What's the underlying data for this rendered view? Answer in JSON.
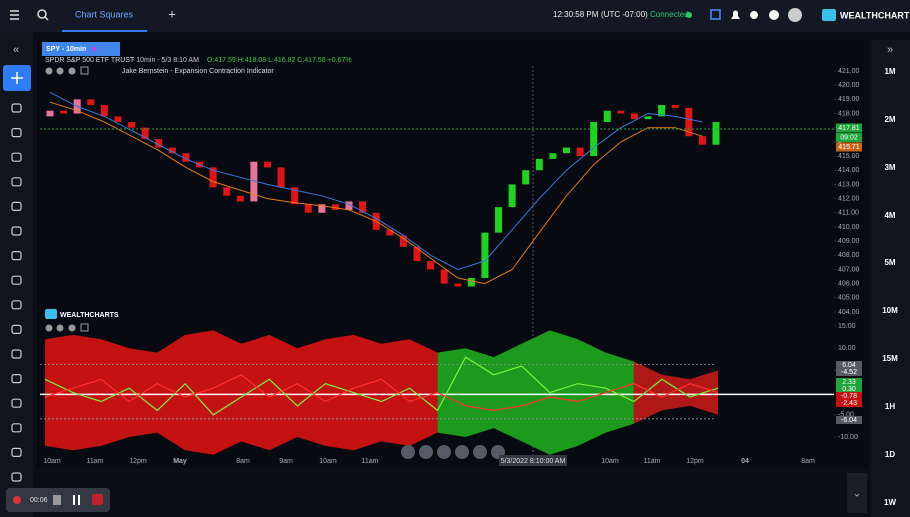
{
  "header": {
    "tab": "Chart Squares",
    "add_tab": "+",
    "time": "12:30:58 PM",
    "timezone": "(UTC -07:00)",
    "status": "Connected",
    "brand": "WEALTHCHARTS"
  },
  "chart_header": {
    "symbol_tab": "SPY - 10min",
    "name": "SPDR S&P 500 ETF TRUST",
    "interval": "- 10min - 5/3 8:10 AM",
    "ohlc": "O:417.59 H:418.08 L:416.82 C:417.58 +0.67%",
    "indicator": "Jake Bernstein - Expansion Contraction Indicator",
    "watermark": "WEALTHCHARTS"
  },
  "timeframes": [
    "1M",
    "2M",
    "3M",
    "4M",
    "5M",
    "10M",
    "15M",
    "1H",
    "1D",
    "1W"
  ],
  "crosshair_label": "5/3/2022 8:10:00 AM",
  "recorder_time": "00:06",
  "chart_data": [
    {
      "type": "candlestick",
      "x_labels": [
        "10am",
        "11am",
        "12pm",
        "May",
        "8am",
        "9am",
        "10am",
        "11am",
        "10am",
        "11am",
        "12pm",
        "04",
        "8am"
      ],
      "opens": [
        417.8,
        418.2,
        418.0,
        419.0,
        418.6,
        417.8,
        417.4,
        417.0,
        416.2,
        415.6,
        415.2,
        414.6,
        414.2,
        412.8,
        412.2,
        411.8,
        414.6,
        414.2,
        412.8,
        411.6,
        411.0,
        411.6,
        411.2,
        411.8,
        411.0,
        409.8,
        409.4,
        408.6,
        407.6,
        407.0,
        406.0,
        405.8,
        406.4,
        409.6,
        411.4,
        413.0,
        414.0,
        414.8,
        415.2,
        415.6,
        415.0,
        417.4,
        418.2,
        418.0,
        417.6,
        417.8,
        418.6,
        418.4,
        416.4,
        415.8
      ],
      "closes": [
        418.2,
        418.0,
        419.0,
        418.6,
        417.8,
        417.4,
        417.0,
        416.2,
        415.6,
        415.2,
        414.6,
        414.2,
        412.8,
        412.2,
        411.8,
        414.6,
        414.2,
        412.8,
        411.6,
        411.0,
        411.6,
        411.2,
        411.8,
        411.0,
        409.8,
        409.4,
        408.6,
        407.6,
        407.0,
        406.0,
        405.8,
        406.4,
        409.6,
        411.4,
        413.0,
        414.0,
        414.8,
        415.2,
        415.6,
        415.0,
        417.4,
        418.2,
        418.0,
        417.6,
        417.8,
        418.6,
        418.4,
        416.4,
        415.8,
        417.4
      ],
      "up_color": "#e8749a",
      "up_color_late": "#1ed41e",
      "down_color": "#e01414",
      "series": [
        {
          "color": "#3a78d8",
          "values": [
            419.5,
            418.5,
            417.8,
            416.8,
            415.8,
            414.8,
            414.0,
            413.5,
            413.0,
            412.6,
            412.2,
            411.6,
            410.6,
            409.4,
            408.0,
            407.0,
            407.6,
            409.8,
            412.0,
            414.0,
            415.6,
            417.0,
            418.0,
            417.8,
            417.4
          ]
        },
        {
          "color": "#e07a1a",
          "values": [
            418.8,
            418.2,
            417.4,
            416.4,
            415.4,
            414.2,
            413.2,
            412.6,
            412.0,
            411.7,
            411.5,
            411.2,
            410.4,
            409.2,
            407.8,
            406.4,
            406.0,
            407.0,
            409.6,
            412.2,
            414.4,
            416.0,
            417.0,
            417.0,
            416.4
          ]
        }
      ],
      "ylim": [
        403.2,
        421.7
      ],
      "yticks": [
        {
          "value": 421,
          "label": "421.00"
        },
        {
          "value": 420,
          "label": "420.00"
        },
        {
          "value": 419,
          "label": "419.00"
        },
        {
          "value": 418,
          "label": "418.00"
        },
        {
          "value": 417,
          "label": "417.00"
        },
        {
          "value": 416,
          "label": "416.00"
        },
        {
          "value": 415,
          "label": "415.00"
        },
        {
          "value": 414,
          "label": "414.00"
        },
        {
          "value": 413,
          "label": "413.00"
        },
        {
          "value": 412,
          "label": "412.00"
        },
        {
          "value": 411,
          "label": "411.00"
        },
        {
          "value": 410,
          "label": "410.00"
        },
        {
          "value": 409,
          "label": "409.00"
        },
        {
          "value": 408,
          "label": "408.00"
        },
        {
          "value": 407,
          "label": "407.00"
        },
        {
          "value": 406,
          "label": "406.00"
        },
        {
          "value": 405,
          "label": "405.00"
        },
        {
          "value": 404,
          "label": "404.00"
        }
      ],
      "price_badges": [
        {
          "text": "417.81",
          "color": "#1fa33a"
        },
        {
          "text": "09:02",
          "color": "#1fa33a"
        },
        {
          "text": "415.71",
          "color": "#c8641a"
        }
      ]
    },
    {
      "type": "band-oscillator",
      "bands": [
        {
          "color": "#c41212",
          "values": [
            12,
            13,
            12,
            10,
            9,
            13,
            14,
            11,
            13,
            10,
            12,
            13,
            11,
            12,
            9,
            null,
            null,
            null,
            null,
            null,
            null,
            null,
            null,
            null,
            null
          ]
        },
        {
          "color": "#1d9a1d",
          "values": [
            null,
            null,
            null,
            null,
            null,
            null,
            null,
            null,
            null,
            null,
            null,
            null,
            null,
            null,
            9,
            10,
            8,
            11,
            14,
            12,
            9,
            7,
            null,
            null,
            null
          ]
        },
        {
          "color": "#b01818",
          "values": [
            null,
            null,
            null,
            null,
            null,
            null,
            null,
            null,
            null,
            null,
            null,
            null,
            null,
            null,
            null,
            null,
            null,
            null,
            null,
            null,
            null,
            7,
            4,
            3,
            5
          ]
        }
      ],
      "series": [
        {
          "color": "#7cf03a",
          "values": [
            3,
            0,
            -2,
            1,
            -4,
            2,
            -5,
            -1,
            3,
            -3,
            2,
            0,
            -2,
            1,
            -4,
            8,
            4,
            6,
            0,
            2,
            1,
            -2,
            3,
            -1,
            1
          ]
        },
        {
          "color": "#ff3030",
          "values": [
            -1,
            1,
            3,
            -2,
            2,
            -1,
            1,
            4,
            -1,
            2,
            -2,
            1,
            3,
            -2,
            0,
            -3,
            -4,
            -3,
            -1,
            -2,
            0,
            2,
            -1,
            2,
            0
          ]
        }
      ],
      "levels": [
        6.3,
        -5.9,
        -0.4
      ],
      "ylim": [
        -13,
        17
      ],
      "yticks": [
        {
          "value": 15,
          "label": "15.00"
        },
        {
          "value": 10,
          "label": "10.00"
        },
        {
          "value": 5,
          "label": "5.00"
        },
        {
          "value": -5,
          "label": "-5.00"
        },
        {
          "value": -10,
          "label": "-10.00"
        }
      ],
      "badges": [
        {
          "text": "6.04",
          "color": "#555a66"
        },
        {
          "text": "-4.52",
          "color": "#555a66"
        },
        {
          "text": "2.33",
          "color": "#1fa33a"
        },
        {
          "text": "0.30",
          "color": "#1fa33a"
        },
        {
          "text": "-0.78",
          "color": "#c41212"
        },
        {
          "text": "-2.43",
          "color": "#c41212"
        },
        {
          "text": "-6.04",
          "color": "#555a66"
        }
      ]
    }
  ]
}
